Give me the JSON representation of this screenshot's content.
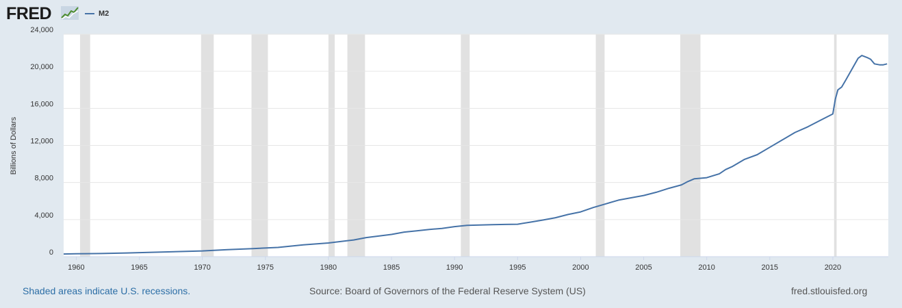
{
  "header": {
    "logo_text": "FRED",
    "legend_label": "M2"
  },
  "footer": {
    "recession_note": "Shaded areas indicate U.S. recessions.",
    "source": "Source: Board of Governors of the Federal Reserve System (US)",
    "site": "fred.stlouisfed.org"
  },
  "colors": {
    "series": "#4572a7",
    "recession": "#e1e1e1",
    "background": "#e1e9f0",
    "plot": "#ffffff"
  },
  "chart_data": {
    "type": "line",
    "title": "",
    "xlabel": "",
    "ylabel": "Billions of Dollars",
    "xlim": [
      1959.0,
      2024.4
    ],
    "ylim": [
      0,
      24000
    ],
    "yticks": [
      0,
      4000,
      8000,
      12000,
      16000,
      20000,
      24000
    ],
    "ytick_labels": [
      "0",
      "4,000",
      "8,000",
      "12,000",
      "16,000",
      "20,000",
      "24,000"
    ],
    "xticks": [
      1960,
      1965,
      1970,
      1975,
      1980,
      1985,
      1990,
      1995,
      2000,
      2005,
      2010,
      2015,
      2020
    ],
    "xtick_labels": [
      "1960",
      "1965",
      "1970",
      "1975",
      "1980",
      "1985",
      "1990",
      "1995",
      "2000",
      "2005",
      "2010",
      "2015",
      "2020"
    ],
    "grid": true,
    "legend": "top-left",
    "recessions": [
      [
        1960.3,
        1961.1
      ],
      [
        1969.9,
        1970.9
      ],
      [
        1973.9,
        1975.2
      ],
      [
        1980.0,
        1980.5
      ],
      [
        1981.5,
        1982.9
      ],
      [
        1990.5,
        1991.2
      ],
      [
        2001.2,
        2001.9
      ],
      [
        2007.9,
        2009.5
      ],
      [
        2020.1,
        2020.3
      ]
    ],
    "series": [
      {
        "name": "M2",
        "x": [
          1959.0,
          1960,
          1962,
          1964,
          1966,
          1968,
          1970,
          1972,
          1974,
          1976,
          1978,
          1980,
          1982,
          1983,
          1985,
          1986,
          1987,
          1988,
          1989,
          1990,
          1991,
          1992,
          1993,
          1994,
          1995,
          1996,
          1997,
          1998,
          1999,
          2000,
          2001,
          2002,
          2003,
          2004,
          2005,
          2006,
          2007,
          2008,
          2008.5,
          2009,
          2010,
          2011,
          2011.5,
          2012,
          2013,
          2014,
          2015,
          2016,
          2017,
          2018,
          2019,
          2020.0,
          2020.2,
          2020.4,
          2020.7,
          2021.0,
          2021.5,
          2022.0,
          2022.3,
          2022.7,
          2023.0,
          2023.3,
          2023.7,
          2024.0,
          2024.3
        ],
        "y": [
          290,
          310,
          340,
          400,
          470,
          550,
          620,
          760,
          870,
          1000,
          1270,
          1480,
          1800,
          2060,
          2400,
          2650,
          2790,
          2930,
          3050,
          3240,
          3380,
          3420,
          3450,
          3480,
          3500,
          3720,
          3950,
          4200,
          4550,
          4830,
          5300,
          5700,
          6100,
          6350,
          6600,
          6950,
          7380,
          7750,
          8100,
          8400,
          8520,
          8940,
          9400,
          9700,
          10500,
          11000,
          11800,
          12600,
          13400,
          14000,
          14700,
          15400,
          17000,
          18000,
          18300,
          19000,
          20200,
          21400,
          21700,
          21500,
          21300,
          20800,
          20700,
          20700,
          20800
        ]
      }
    ]
  }
}
